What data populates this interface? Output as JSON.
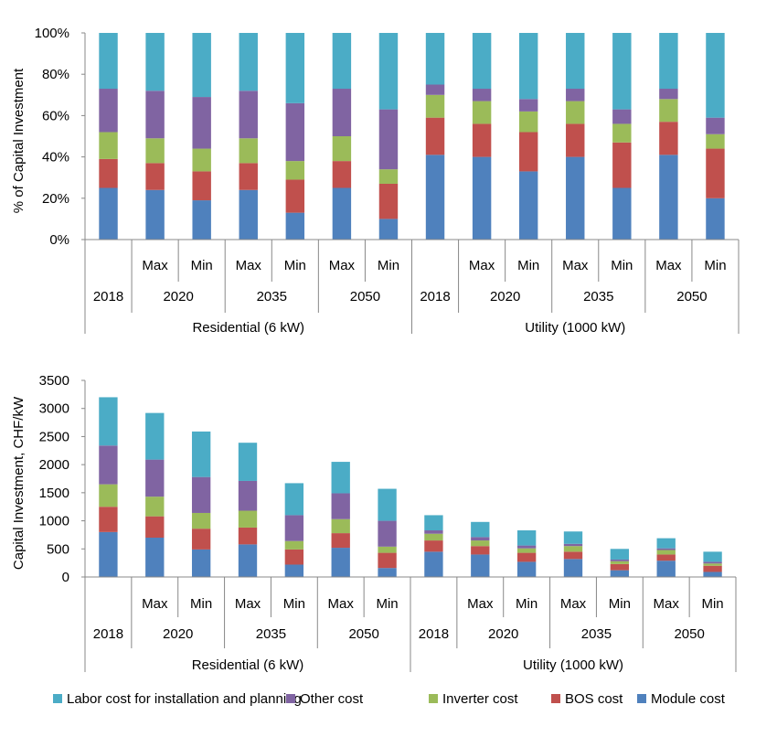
{
  "colors": {
    "Module cost": "#4f81bd",
    "BOS cost": "#c0504d",
    "Inverter cost": "#9bbb59",
    "Other cost": "#8064a2",
    "Labor cost for installation and planning": "#4bacc6"
  },
  "legend": [
    "Labor cost for installation and planning",
    "Other cost",
    "Inverter cost",
    "BOS cost",
    "Module cost"
  ],
  "chart_data": [
    {
      "type": "bar",
      "stacked": true,
      "ylabel": "% of Capital Investment",
      "ylim": [
        0,
        100
      ],
      "yticks": [
        "0%",
        "20%",
        "40%",
        "60%",
        "80%",
        "100%"
      ],
      "categories": [
        "2018",
        "2020 Max",
        "2020 Min",
        "2035 Max",
        "2035 Min",
        "2050 Max",
        "2050 Min",
        "2018",
        "2020 Max",
        "2020 Min",
        "2035 Max",
        "2035 Min",
        "2050 Max",
        "2050 Min"
      ],
      "series": [
        {
          "name": "Module cost",
          "values": [
            25,
            24,
            19,
            24,
            13,
            25,
            10,
            41,
            40,
            33,
            40,
            25,
            41,
            20
          ]
        },
        {
          "name": "BOS cost",
          "values": [
            14,
            13,
            14,
            13,
            16,
            13,
            17,
            18,
            16,
            19,
            16,
            22,
            16,
            24
          ]
        },
        {
          "name": "Inverter cost",
          "values": [
            13,
            12,
            11,
            12,
            9,
            12,
            7,
            11,
            11,
            10,
            11,
            9,
            11,
            7
          ]
        },
        {
          "name": "Other cost",
          "values": [
            21,
            23,
            25,
            23,
            28,
            23,
            29,
            5,
            6,
            6,
            6,
            7,
            5,
            8
          ]
        },
        {
          "name": "Labor cost for installation and planning",
          "values": [
            27,
            28,
            31,
            28,
            34,
            27,
            37,
            25,
            27,
            32,
            27,
            37,
            27,
            41
          ]
        }
      ],
      "sub_labels": [
        "",
        "Max",
        "Min",
        "Max",
        "Min",
        "Max",
        "Min",
        "",
        "Max",
        "Min",
        "Max",
        "Min",
        "Max",
        "Min"
      ],
      "year_labels": [
        "2018",
        "2020",
        "2035",
        "2050",
        "2018",
        "2020",
        "2035",
        "2050"
      ],
      "group_labels": [
        "Residential (6 kW)",
        "Utility (1000 kW)"
      ]
    },
    {
      "type": "bar",
      "stacked": true,
      "ylabel": "Capital Investment,  CHF/kW",
      "ylim": [
        0,
        3500
      ],
      "yticks": [
        "0",
        "500",
        "1000",
        "1500",
        "2000",
        "2500",
        "3000",
        "3500"
      ],
      "categories": [
        "2018",
        "2020 Max",
        "2020 Min",
        "2035 Max",
        "2035 Min",
        "2050 Max",
        "2050 Min",
        "2018",
        "2020 Max",
        "2020 Min",
        "2035 Max",
        "2035 Min",
        "2050 Max",
        "2050 Min"
      ],
      "series": [
        {
          "name": "Module cost",
          "values": [
            800,
            700,
            490,
            580,
            220,
            520,
            160,
            450,
            400,
            270,
            320,
            120,
            290,
            90
          ]
        },
        {
          "name": "BOS cost",
          "values": [
            450,
            380,
            370,
            300,
            270,
            260,
            270,
            200,
            150,
            160,
            130,
            110,
            110,
            110
          ]
        },
        {
          "name": "Inverter cost",
          "values": [
            400,
            350,
            280,
            300,
            150,
            250,
            110,
            120,
            100,
            80,
            100,
            50,
            80,
            40
          ]
        },
        {
          "name": "Other cost",
          "values": [
            690,
            660,
            640,
            530,
            460,
            460,
            460,
            60,
            60,
            50,
            40,
            30,
            30,
            30
          ]
        },
        {
          "name": "Labor cost for installation and planning",
          "values": [
            860,
            830,
            810,
            680,
            570,
            560,
            570,
            270,
            270,
            270,
            220,
            190,
            180,
            180
          ]
        }
      ],
      "sub_labels": [
        "",
        "Max",
        "Min",
        "Max",
        "Min",
        "Max",
        "Min",
        "",
        "Max",
        "Min",
        "Max",
        "Min",
        "Max",
        "Min"
      ],
      "year_labels": [
        "2018",
        "2020",
        "2035",
        "2050",
        "2018",
        "2020",
        "2035",
        "2050"
      ],
      "group_labels": [
        "Residential (6 kW)",
        "Utility (1000 kW)"
      ]
    }
  ]
}
